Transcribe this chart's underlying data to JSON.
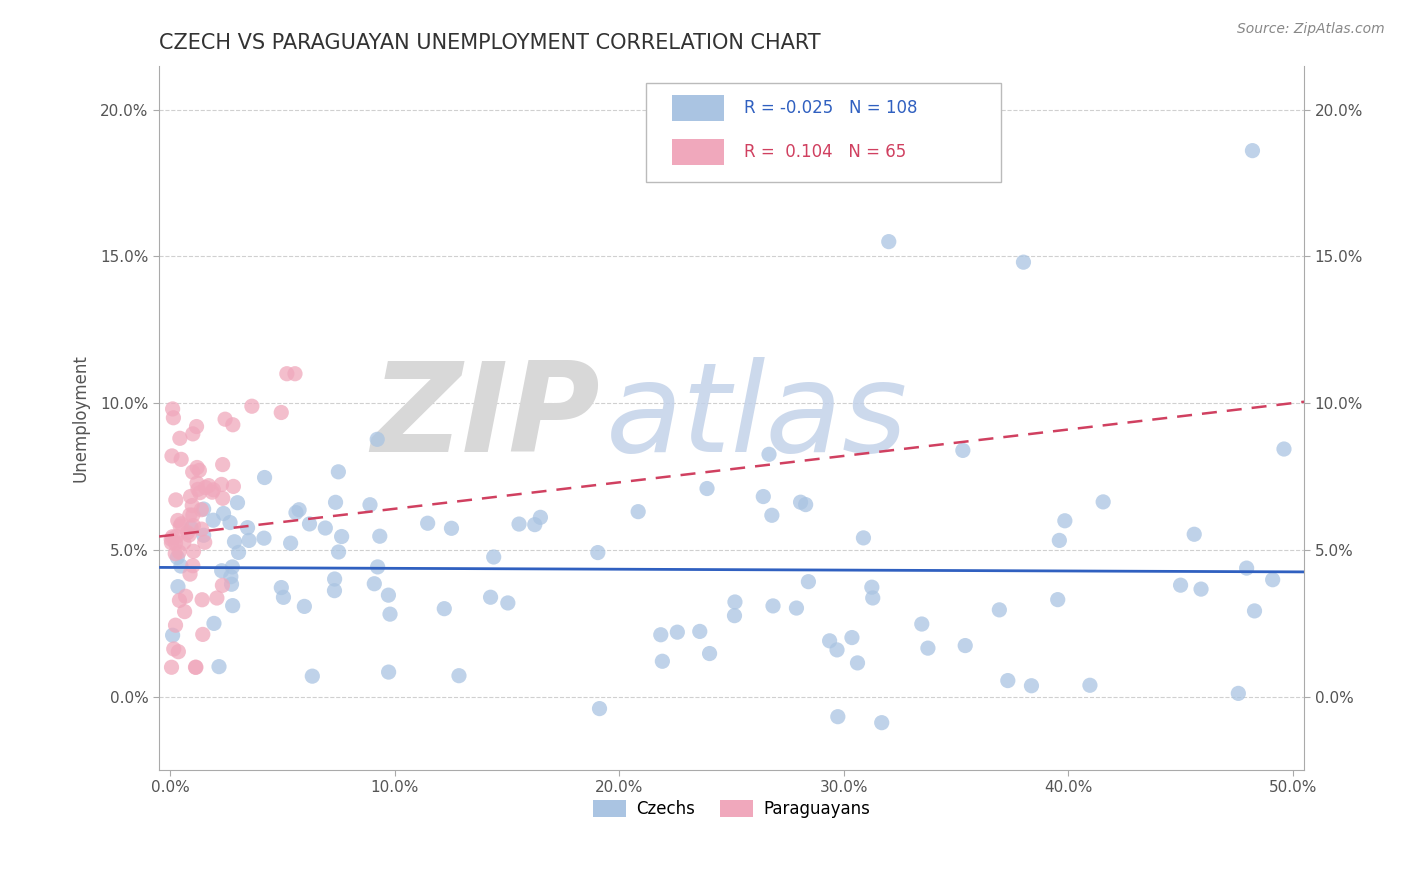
{
  "title": "CZECH VS PARAGUAYAN UNEMPLOYMENT CORRELATION CHART",
  "source": "Source: ZipAtlas.com",
  "ylabel": "Unemployment",
  "xlim": [
    -0.005,
    0.505
  ],
  "ylim": [
    -0.025,
    0.215
  ],
  "xticks": [
    0.0,
    0.1,
    0.2,
    0.3,
    0.4,
    0.5
  ],
  "yticks": [
    0.0,
    0.05,
    0.1,
    0.15,
    0.2
  ],
  "xticklabels": [
    "0.0%",
    "10.0%",
    "20.0%",
    "30.0%",
    "40.0%",
    "50.0%"
  ],
  "yticklabels": [
    "0.0%",
    "5.0%",
    "10.0%",
    "15.0%",
    "20.0%"
  ],
  "czech_R": -0.025,
  "czech_N": 108,
  "para_R": 0.104,
  "para_N": 65,
  "czech_color": "#aac4e2",
  "para_color": "#f0a8bc",
  "czech_line_color": "#3060c0",
  "para_line_color": "#d04060",
  "watermark_zip": "ZIP",
  "watermark_atlas": "atlas",
  "background_color": "#ffffff",
  "grid_color": "#d0d0d0",
  "title_color": "#333333",
  "axis_label_color": "#555555",
  "tick_color": "#555555",
  "source_color": "#888888"
}
